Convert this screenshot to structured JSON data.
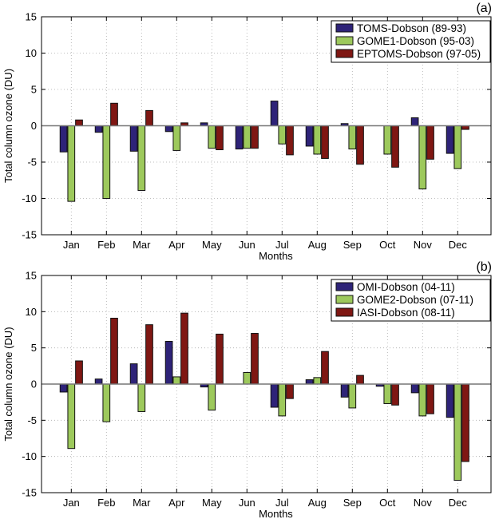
{
  "chart_data": [
    {
      "type": "bar",
      "panel_label": "(a)",
      "xlabel": "Months",
      "ylabel": "Total column ozone (DU)",
      "ylim": [
        -15,
        15
      ],
      "yticks": [
        -15,
        -10,
        -5,
        0,
        5,
        10,
        15
      ],
      "grid": true,
      "legend": "top-right",
      "categories": [
        "Jan",
        "Feb",
        "Mar",
        "Apr",
        "May",
        "Jun",
        "Jul",
        "Aug",
        "Sep",
        "Oct",
        "Nov",
        "Dec"
      ],
      "series": [
        {
          "name": "TOMS-Dobson (89-93)",
          "color": "#2e2378",
          "values": [
            -3.6,
            -0.9,
            -3.5,
            -0.8,
            0.4,
            -3.2,
            3.4,
            -2.8,
            0.3,
            0.0,
            1.1,
            -3.8
          ]
        },
        {
          "name": "GOME1-Dobson (95-03)",
          "color": "#9dc95c",
          "values": [
            -10.4,
            -10.0,
            -8.9,
            -3.4,
            -3.1,
            -3.1,
            -2.5,
            -3.9,
            -3.2,
            -3.9,
            -8.7,
            -5.9
          ]
        },
        {
          "name": "EPTOMS-Dobson (97-05)",
          "color": "#7f1713",
          "values": [
            0.8,
            3.1,
            2.1,
            0.4,
            -3.3,
            -3.1,
            -4.0,
            -4.5,
            -5.3,
            -5.7,
            -4.6,
            -0.5
          ]
        }
      ]
    },
    {
      "type": "bar",
      "panel_label": "(b)",
      "xlabel": "Months",
      "ylabel": "Total column ozone (DU)",
      "ylim": [
        -15,
        15
      ],
      "yticks": [
        -15,
        -10,
        -5,
        0,
        5,
        10,
        15
      ],
      "grid": true,
      "legend": "top-right",
      "categories": [
        "Jan",
        "Feb",
        "Mar",
        "Apr",
        "May",
        "Jun",
        "Jul",
        "Aug",
        "Sep",
        "Oct",
        "Nov",
        "Dec"
      ],
      "series": [
        {
          "name": "OMI-Dobson (04-11)",
          "color": "#2e2378",
          "values": [
            -1.1,
            0.7,
            2.8,
            5.9,
            -0.4,
            0.0,
            -3.2,
            0.6,
            -1.8,
            -0.3,
            -1.2,
            -4.6
          ]
        },
        {
          "name": "GOME2-Dobson (07-11)",
          "color": "#9dc95c",
          "values": [
            -8.9,
            -5.2,
            -3.8,
            1.0,
            -3.6,
            1.6,
            -4.4,
            0.9,
            -3.3,
            -2.7,
            -4.4,
            -13.3
          ]
        },
        {
          "name": "IASI-Dobson (08-11)",
          "color": "#7f1713",
          "values": [
            3.2,
            9.1,
            8.2,
            9.8,
            6.9,
            7.0,
            -2.0,
            4.5,
            1.2,
            -2.9,
            -4.1,
            -10.7
          ]
        }
      ]
    }
  ]
}
